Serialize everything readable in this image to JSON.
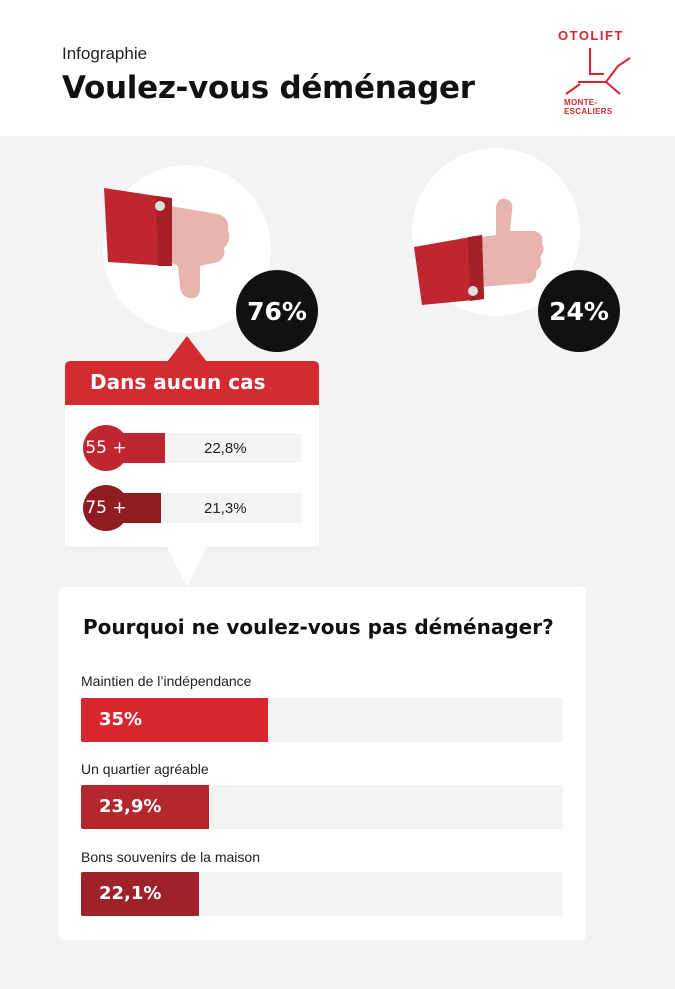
{
  "header": {
    "kicker": "Infographie",
    "title": "Voulez-vous déménager"
  },
  "logo": {
    "name": "OTOLIFT",
    "tagline": "MONTE-ESCALIERS"
  },
  "colors": {
    "brand_red": "#d42a31",
    "dark_red": "#8e1c22",
    "mid_red": "#c0262f",
    "skin": "#e8b4b0",
    "badge_black": "#111111",
    "background": "#f3f3f3"
  },
  "chart_data": [
    {
      "type": "pie",
      "categories": [
        "thumbs-down",
        "thumbs-up"
      ],
      "values": [
        76,
        24
      ],
      "value_labels": [
        "76%",
        "24%"
      ]
    },
    {
      "type": "bar",
      "title": "Dans aucun cas",
      "categories": [
        "55 +",
        "75 +"
      ],
      "values": [
        22.8,
        21.3
      ],
      "value_labels": [
        "22,8%",
        "21,3%"
      ],
      "bar_colors": [
        "#c0262f",
        "#8e1c22"
      ],
      "ylim": [
        0,
        100
      ]
    },
    {
      "type": "bar",
      "title": "Pourquoi ne voulez-vous pas déménager?",
      "categories": [
        "Maintien de l’indépendance",
        "Un quartier agréable",
        "Bons souvenirs de la maison"
      ],
      "values": [
        35,
        23.9,
        22.1
      ],
      "value_labels": [
        "35%",
        "23,9%",
        "22,1%"
      ],
      "bar_colors": [
        "#d9272f",
        "#b5262d",
        "#9e2229"
      ],
      "ylim": [
        0,
        100
      ]
    }
  ]
}
